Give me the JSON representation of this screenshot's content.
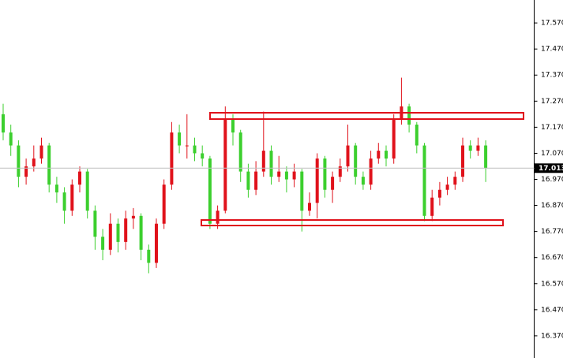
{
  "chart_data": {
    "type": "candlestick",
    "open": [
      17.22,
      17.15,
      17.1,
      16.98,
      17.02,
      17.05,
      17.1,
      16.95,
      16.92,
      16.85,
      16.95,
      17.0,
      16.85,
      16.75,
      16.7,
      16.8,
      16.73,
      16.82,
      16.83,
      16.7,
      16.65,
      16.8,
      16.95,
      17.15,
      17.1,
      17.1,
      17.07,
      17.05,
      16.8,
      16.85,
      17.2,
      17.15,
      17.0,
      16.93,
      17.0,
      17.08,
      16.98,
      17.0,
      16.97,
      17.0,
      16.85,
      16.88,
      17.05,
      16.93,
      16.98,
      17.02,
      17.1,
      16.98,
      16.95,
      17.05,
      17.08,
      17.05,
      17.2,
      17.25,
      17.18,
      17.1,
      16.83,
      16.9,
      16.93,
      16.95,
      16.98,
      17.1,
      17.08,
      17.1
    ],
    "high": [
      17.26,
      17.18,
      17.12,
      17.05,
      17.1,
      17.13,
      17.11,
      16.98,
      16.94,
      16.97,
      17.02,
      17.01,
      16.87,
      16.78,
      16.84,
      16.82,
      16.85,
      16.86,
      16.84,
      16.72,
      16.82,
      16.97,
      17.19,
      17.18,
      17.22,
      17.13,
      17.1,
      17.06,
      16.87,
      17.25,
      17.22,
      17.16,
      17.03,
      17.04,
      17.23,
      17.1,
      17.06,
      17.02,
      17.03,
      17.01,
      16.92,
      17.07,
      17.06,
      17.0,
      17.05,
      17.18,
      17.11,
      17.0,
      17.08,
      17.11,
      17.1,
      17.22,
      17.36,
      17.26,
      17.19,
      17.11,
      16.93,
      16.96,
      16.98,
      17.0,
      17.13,
      17.12,
      17.13,
      17.12
    ],
    "low": [
      17.12,
      17.06,
      16.94,
      16.95,
      17.0,
      17.03,
      16.92,
      16.88,
      16.8,
      16.83,
      16.92,
      16.82,
      16.7,
      16.66,
      16.68,
      16.69,
      16.7,
      16.78,
      16.66,
      16.61,
      16.63,
      16.78,
      16.93,
      17.07,
      17.05,
      17.04,
      17.02,
      16.78,
      16.78,
      16.84,
      17.1,
      16.96,
      16.9,
      16.91,
      16.98,
      16.95,
      16.96,
      16.92,
      16.94,
      16.77,
      16.83,
      16.82,
      16.9,
      16.88,
      16.96,
      17.0,
      16.95,
      16.93,
      16.93,
      17.03,
      17.02,
      17.03,
      17.18,
      17.15,
      17.07,
      16.81,
      16.81,
      16.87,
      16.91,
      16.93,
      16.96,
      17.05,
      17.06,
      16.96
    ],
    "close": [
      17.15,
      17.1,
      16.98,
      17.02,
      17.05,
      17.1,
      16.95,
      16.92,
      16.85,
      16.95,
      17.0,
      16.85,
      16.75,
      16.7,
      16.8,
      16.73,
      16.82,
      16.83,
      16.7,
      16.65,
      16.8,
      16.95,
      17.15,
      17.1,
      17.1,
      17.07,
      17.05,
      16.8,
      16.85,
      17.2,
      17.15,
      17.0,
      16.93,
      17.0,
      17.08,
      16.98,
      17.0,
      16.97,
      17.0,
      16.85,
      16.88,
      17.05,
      16.93,
      16.98,
      17.02,
      17.1,
      16.98,
      16.95,
      17.05,
      17.08,
      17.05,
      17.2,
      17.25,
      17.18,
      17.1,
      16.83,
      16.9,
      16.93,
      16.95,
      16.98,
      17.1,
      17.08,
      17.1,
      17.013
    ],
    "up_color": "#e0121b",
    "down_color": "#3ccf2e",
    "last_price": 17.013,
    "ylim": [
      16.285,
      17.658
    ],
    "yticks": [
      {
        "value": 16.37,
        "label": "16.370"
      },
      {
        "value": 16.47,
        "label": "16.470"
      },
      {
        "value": 16.57,
        "label": "16.570"
      },
      {
        "value": 16.67,
        "label": "16.670"
      },
      {
        "value": 16.77,
        "label": "16.770"
      },
      {
        "value": 16.87,
        "label": "16.870"
      },
      {
        "value": 16.97,
        "label": "16.970"
      },
      {
        "value": 17.07,
        "label": "17.070"
      },
      {
        "value": 17.17,
        "label": "17.170"
      },
      {
        "value": 17.27,
        "label": "17.270"
      },
      {
        "value": 17.37,
        "label": "17.370"
      },
      {
        "value": 17.47,
        "label": "17.470"
      },
      {
        "value": 17.57,
        "label": "17.570"
      }
    ]
  }
}
